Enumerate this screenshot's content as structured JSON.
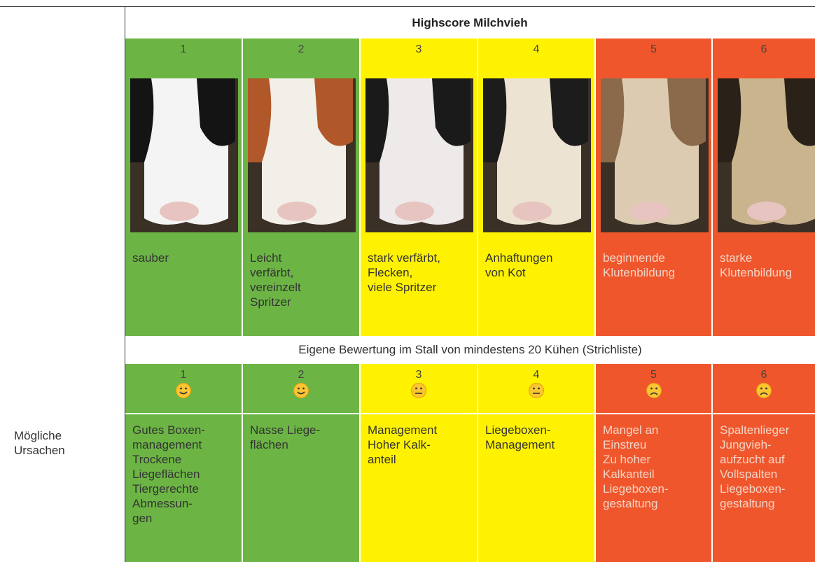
{
  "header": {
    "title": "Highscore Milchvieh"
  },
  "scores": [
    1,
    2,
    3,
    4,
    5,
    6
  ],
  "descriptions": [
    "sauber",
    "Leicht\nverfärbt,\nvereinzelt\nSpritzer",
    "stark verfärbt,\nFlecken,\nviele Spritzer",
    "Anhaftungen\nvon Kot",
    "beginnende\nKlutenbildung",
    "starke\nKlutenbildung"
  ],
  "assessment_note": "Eigene Bewertung im Stall von mindestens 20 Kühen (Strichliste)",
  "rating_scores": [
    1,
    2,
    3,
    4,
    5,
    6
  ],
  "causes_label": "Mögliche\nUrsachen",
  "causes": [
    "Gutes Boxen-\nmanagement\nTrockene\nLiegeflächen\nTiergerechte\nAbmessun-\ngen",
    "Nasse Liege-\nflächen",
    "Management\nHoher Kalk-\nanteil",
    "Liegeboxen-\nManagement",
    "Mangel an\nEinstreu\nZu hoher\nKalkanteil\nLiegeboxen-\ngestaltung",
    "Spaltenlieger\nJungvieh-\naufzucht auf\nVollspalten\nLiegeboxen-\ngestaltung"
  ]
}
